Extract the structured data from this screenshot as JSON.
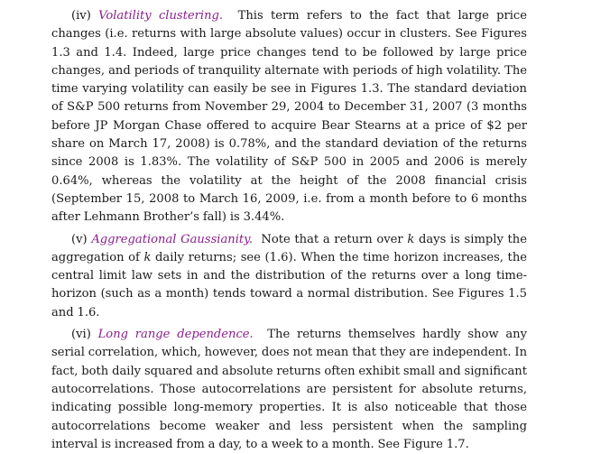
{
  "paragraphs": [
    {
      "label": "(iv)",
      "term": "Volatility clustering.",
      "text": "This term refers to the fact that large price changes (i.e. returns with large absolute values) occur in clusters. See Figures 1.3 and 1.4. Indeed, large price changes tend to be followed by large price changes, and periods of tranquility alternate with periods of high volatility. The time varying volatility can easily be see in Figures 1.3. The standard deviation of S&P 500 returns from November 29, 2004 to December 31, 2007 (3 months before JP Morgan Chase offered to acquire Bear Stearns at a price of $2 per share on March 17, 2008) is 0.78%, and the standard deviation of the returns since 2008 is 1.83%. The volatility of S&P 500 in 2005 and 2006 is merely 0.64%, whereas the volatility at the height of the 2008 financial crisis (September 15, 2008 to March 16, 2009, i.e. from a month before to 6 months after Lehmann Brother’s fall) is 3.44%."
    },
    {
      "label": "(v)",
      "term": "Aggregational Gaussianity.",
      "text_a": "Note that a return over",
      "k1": "k",
      "text_b": "days is simply the aggregation of",
      "k2": "k",
      "text_c": "daily returns; see (1.6). When the time horizon increases, the central limit law sets in and the distribution of the returns over a long time-horizon (such as a month) tends toward a normal distribution. See Figures 1.5 and 1.6."
    },
    {
      "label": "(vi)",
      "term": "Long range dependence.",
      "text": "The returns themselves hardly show any serial correlation, which, however, does not mean that they are independent. In fact, both daily squared and absolute returns often exhibit small and significant autocorrela­tions. Those autocorrelations are persistent for absolute returns, indicating possible long-memory properties. It is also noticeable that those autocorrelations become weaker and less persistent when the sampling interval is increased from a day, to a week to a month. See Figure 1.7."
    }
  ]
}
